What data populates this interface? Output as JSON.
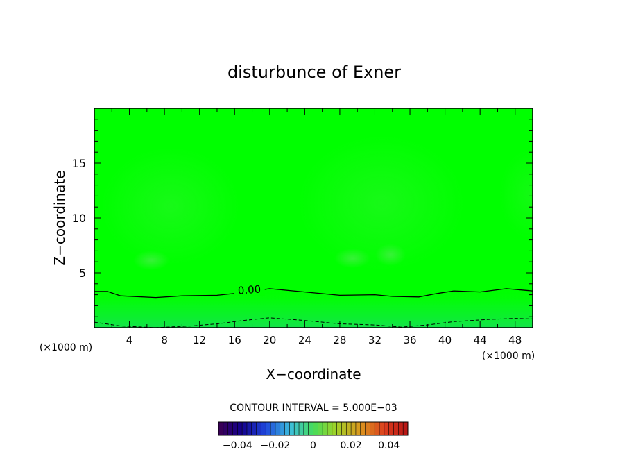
{
  "chart_data": {
    "type": "heatmap",
    "title": "disturbunce of Exner",
    "xlabel": "X−coordinate",
    "ylabel": "Z−coordinate",
    "x_unit": "(×1000 m)",
    "y_unit": "(×1000 m)",
    "xlim": [
      0,
      50
    ],
    "ylim": [
      0,
      20
    ],
    "x_ticks": [
      4,
      8,
      12,
      16,
      20,
      24,
      28,
      32,
      36,
      40,
      44,
      48
    ],
    "y_ticks": [
      5,
      10,
      15
    ],
    "x_tick_labels": [
      "4",
      "8",
      "12",
      "16",
      "20",
      "24",
      "28",
      "32",
      "36",
      "40",
      "44",
      "48"
    ],
    "y_tick_labels": [
      "5",
      "10",
      "15"
    ],
    "contour_interval_text": "CONTOUR INTERVAL = 5.000E−03",
    "contours": [
      {
        "label": "0.00",
        "style": "solid",
        "points": [
          [
            0,
            3.3
          ],
          [
            1.5,
            3.3
          ],
          [
            3,
            2.9
          ],
          [
            7,
            2.75
          ],
          [
            10,
            2.9
          ],
          [
            14,
            2.95
          ],
          [
            17,
            3.2
          ],
          [
            20,
            3.55
          ],
          [
            24,
            3.25
          ],
          [
            28,
            2.95
          ],
          [
            32,
            3.0
          ],
          [
            34,
            2.85
          ],
          [
            37,
            2.8
          ],
          [
            39,
            3.1
          ],
          [
            41,
            3.35
          ],
          [
            44,
            3.25
          ],
          [
            47,
            3.55
          ],
          [
            50,
            3.35
          ]
        ]
      },
      {
        "label": "",
        "style": "dashed",
        "points": [
          [
            0,
            0.5
          ],
          [
            3,
            0.15
          ],
          [
            7,
            0.0
          ],
          [
            11,
            0.15
          ],
          [
            14,
            0.35
          ],
          [
            17,
            0.65
          ],
          [
            20,
            0.9
          ],
          [
            24,
            0.65
          ],
          [
            28,
            0.35
          ],
          [
            32,
            0.25
          ],
          [
            35,
            0.05
          ],
          [
            38,
            0.25
          ],
          [
            41,
            0.55
          ],
          [
            45,
            0.75
          ],
          [
            48,
            0.85
          ],
          [
            50,
            0.8
          ]
        ]
      }
    ],
    "colorbar": {
      "range": [
        -0.05,
        0.05
      ],
      "tick_values": [
        -0.04,
        -0.02,
        0,
        0.02,
        0.04
      ],
      "tick_labels": [
        "−0.04",
        "−0.02",
        "0",
        "0.02",
        "0.04"
      ]
    },
    "colors": {
      "field_main": "#00ff00",
      "field_light": "#21f521",
      "field_bottom": "#13e34a"
    }
  }
}
